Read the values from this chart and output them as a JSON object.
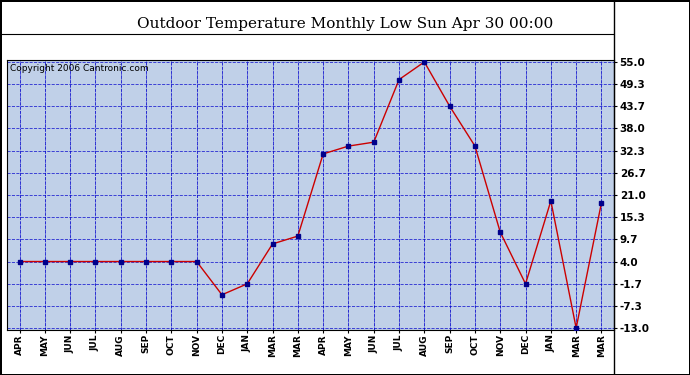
{
  "title": "Outdoor Temperature Monthly Low Sun Apr 30 00:00",
  "copyright": "Copyright 2006 Cantronic.com",
  "x_labels": [
    "APR",
    "MAY",
    "JUN",
    "JUL",
    "AUG",
    "SEP",
    "OCT",
    "NOV",
    "DEC",
    "JAN",
    "MAR",
    "MAR",
    "APR",
    "MAY",
    "JUN",
    "JUL",
    "AUG",
    "SEP",
    "OCT",
    "NOV",
    "DEC",
    "JAN",
    "MAR",
    "MAR"
  ],
  "y_data": [
    4.0,
    4.0,
    4.0,
    4.0,
    4.0,
    4.0,
    4.0,
    4.0,
    -4.5,
    -1.7,
    8.5,
    10.5,
    31.5,
    33.5,
    34.5,
    50.5,
    55.0,
    43.7,
    33.5,
    11.5,
    -1.7,
    19.5,
    -13.0,
    19.0
  ],
  "yticks": [
    55.0,
    49.3,
    43.7,
    38.0,
    32.3,
    26.7,
    21.0,
    15.3,
    9.7,
    4.0,
    -1.7,
    -7.3,
    -13.0
  ],
  "ymin": -13.0,
  "ymax": 55.0,
  "line_color": "#cc0000",
  "marker_color": "#00008b",
  "bg_color": "#c0d0e8",
  "grid_color": "#0000cc",
  "title_fontsize": 11,
  "copyright_fontsize": 6.5
}
